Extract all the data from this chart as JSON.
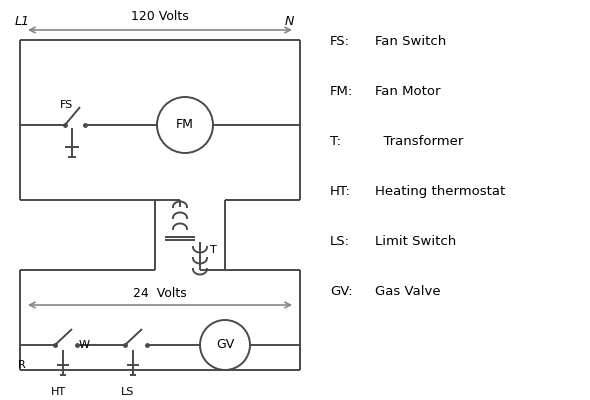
{
  "bg_color": "#ffffff",
  "line_color": "#4a4a4a",
  "arrow_color": "#888888",
  "text_color": "#000000",
  "figsize": [
    5.9,
    4.0
  ],
  "dpi": 100,
  "legend_items": [
    [
      "FS:",
      "Fan Switch"
    ],
    [
      "FM:",
      "Fan Motor"
    ],
    [
      "T:",
      "  Transformer"
    ],
    [
      "HT:",
      "Heating thermostat"
    ],
    [
      "LS:",
      "Limit Switch"
    ],
    [
      "GV:",
      "Gas Valve"
    ]
  ]
}
